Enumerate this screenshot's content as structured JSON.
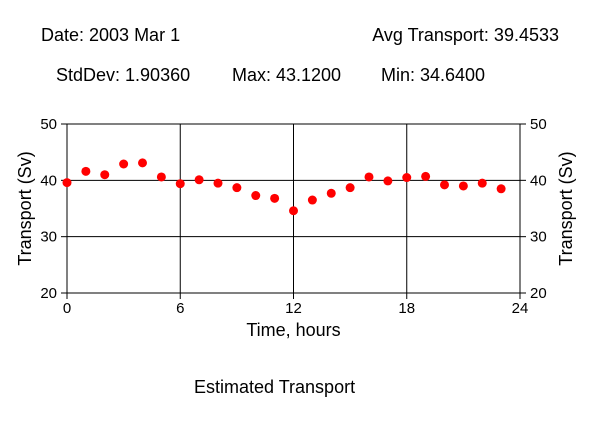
{
  "header": {
    "date": "Date: 2003 Mar 1",
    "avg": "Avg Transport: 39.4533",
    "stddev": "StdDev: 1.90360",
    "max": "Max: 43.1200",
    "min": "Min: 34.6400"
  },
  "caption": "Estimated Transport",
  "colors": {
    "point": "#ff0000",
    "grid": "#000000",
    "axis": "#000000"
  },
  "chart_data": {
    "type": "scatter",
    "title": "",
    "xlabel": "Time, hours",
    "ylabel": "Transport (Sv)",
    "ylabel_right": "Transport (Sv)",
    "xlim": [
      0,
      24
    ],
    "ylim": [
      20,
      50
    ],
    "xticks": [
      0,
      6,
      12,
      18,
      24
    ],
    "yticks": [
      20,
      30,
      40,
      50
    ],
    "grid": true,
    "x": [
      0,
      1,
      2,
      3,
      4,
      5,
      6,
      7,
      8,
      9,
      10,
      11,
      12,
      13,
      14,
      15,
      16,
      17,
      18,
      19,
      20,
      21,
      22,
      23
    ],
    "y": [
      39.6,
      41.6,
      41.0,
      42.9,
      43.1,
      40.6,
      39.4,
      40.1,
      39.5,
      38.7,
      37.3,
      36.8,
      34.6,
      36.5,
      37.7,
      38.7,
      40.6,
      39.9,
      40.5,
      40.7,
      39.2,
      39.0,
      39.5,
      38.5
    ]
  }
}
